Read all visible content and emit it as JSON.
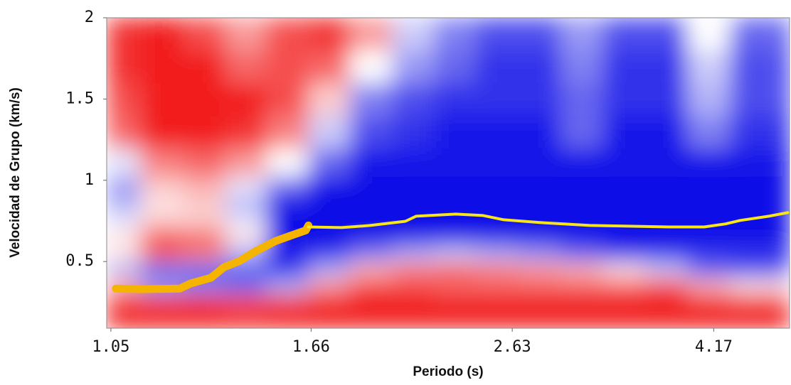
{
  "chart_data": {
    "type": "heatmap",
    "x_label": "Periodo (s)",
    "y_label": "Velocidad de Grupo (km/s)",
    "log_x": true,
    "xlim": [
      1.04,
      4.96
    ],
    "xticks": [
      1.05,
      1.66,
      2.63,
      4.17
    ],
    "ylim": [
      0.09,
      2
    ],
    "yticks": [
      0.5,
      1,
      1.5,
      2
    ],
    "zlim": [
      -1,
      1
    ],
    "colormap": [
      "#0000e6",
      "#ffffff",
      "#f00000"
    ],
    "x": [
      1.07,
      1.18,
      1.3,
      1.43,
      1.57,
      1.73,
      1.9,
      2.1,
      2.3,
      2.54,
      2.8,
      3.08,
      3.4,
      3.74,
      4.12,
      4.54
    ],
    "y": [
      0.15,
      0.25,
      0.35,
      0.45,
      0.55,
      0.65,
      0.75,
      0.85,
      0.95,
      1.1,
      1.3,
      1.5,
      1.7,
      1.9
    ],
    "z": [
      [
        0.9,
        0.9,
        0.9,
        0.9,
        0.9,
        0.9,
        0.9,
        0.9,
        0.9,
        0.9,
        0.9,
        0.9,
        0.9,
        0.9,
        0.9,
        0.9
      ],
      [
        0.8,
        0.8,
        0.8,
        0.7,
        0.8,
        0.9,
        0.9,
        0.9,
        0.9,
        0.9,
        0.9,
        0.9,
        0.9,
        0.9,
        0.9,
        0.9
      ],
      [
        0.3,
        -0.4,
        -0.5,
        -0.6,
        -0.3,
        0.4,
        0.7,
        0.7,
        0.6,
        0.6,
        0.6,
        0.6,
        0.6,
        0.7,
        0.3,
        0.1
      ],
      [
        -0.3,
        -0.6,
        -0.6,
        -0.6,
        -0.8,
        -0.3,
        0.3,
        0.5,
        0.6,
        0.5,
        0.4,
        0.3,
        0.1,
        -0.2,
        -0.6,
        -0.7
      ],
      [
        0.1,
        0.6,
        0.5,
        -0.3,
        -0.9,
        -0.8,
        -0.5,
        -0.3,
        -0.2,
        -0.3,
        -0.4,
        -0.6,
        -0.8,
        -0.8,
        -0.8,
        -0.8
      ],
      [
        0.1,
        0.7,
        0.6,
        0.1,
        -0.9,
        -0.95,
        -0.95,
        -0.95,
        -0.95,
        -0.95,
        -0.95,
        -0.95,
        -0.95,
        -0.95,
        -0.95,
        -0.95
      ],
      [
        -0.1,
        0.2,
        0.2,
        -0.1,
        -0.95,
        -0.95,
        -0.95,
        -0.95,
        -0.95,
        -0.95,
        -0.95,
        -0.95,
        -0.95,
        -0.95,
        -0.95,
        -0.95
      ],
      [
        -0.3,
        0.1,
        0.2,
        -0.3,
        -0.95,
        -0.95,
        -0.95,
        -0.95,
        -0.95,
        -0.95,
        -0.95,
        -0.95,
        -0.95,
        -0.95,
        -0.95,
        -0.95
      ],
      [
        -0.4,
        0.2,
        0.3,
        -0.1,
        -0.6,
        -0.95,
        -0.95,
        -0.95,
        -0.95,
        -0.95,
        -0.95,
        -0.95,
        -0.95,
        -0.95,
        -0.95,
        -0.95
      ],
      [
        -0.1,
        0.5,
        0.6,
        0.4,
        0,
        -0.6,
        -0.9,
        -0.9,
        -0.9,
        -0.9,
        -0.9,
        -0.9,
        -0.9,
        -0.9,
        -0.9,
        -0.9
      ],
      [
        0.6,
        0.9,
        0.9,
        0.8,
        0.5,
        -0.2,
        -0.7,
        -0.8,
        -0.9,
        -0.9,
        -0.9,
        -0.6,
        -0.9,
        -0.9,
        -0.5,
        -0.8
      ],
      [
        0.7,
        0.9,
        0.9,
        0.9,
        0.7,
        0.2,
        -0.5,
        -0.7,
        -0.8,
        -0.8,
        -0.8,
        -0.6,
        -0.8,
        -0.8,
        -0.3,
        -0.7
      ],
      [
        0.8,
        0.9,
        0.9,
        0.6,
        0.7,
        0.6,
        0,
        -0.4,
        -0.6,
        -0.8,
        -0.8,
        -0.5,
        -0.8,
        -0.8,
        -0.2,
        -0.7
      ],
      [
        0.8,
        0.9,
        0.7,
        0.4,
        0.7,
        0.8,
        0.4,
        -0.2,
        -0.5,
        -0.7,
        -0.7,
        -0.4,
        -0.7,
        -0.7,
        0,
        -0.6
      ]
    ],
    "series": [
      {
        "color": "#f5b400",
        "x": [
          1.062,
          1.125,
          1.23,
          1.26,
          1.32,
          1.36,
          1.41,
          1.46,
          1.53,
          1.58,
          1.64,
          1.65
        ],
        "values": [
          0.334,
          0.33,
          0.334,
          0.365,
          0.4,
          0.465,
          0.504,
          0.561,
          0.626,
          0.657,
          0.692,
          0.722
        ]
      },
      {
        "color": "#f7e51c",
        "x": [
          1.65,
          1.78,
          1.9,
          2.06,
          2.11,
          2.31,
          2.46,
          2.58,
          2.8,
          3.14,
          3.76,
          4.08,
          4.28,
          4.43,
          4.73,
          4.94
        ],
        "values": [
          0.713,
          0.709,
          0.722,
          0.748,
          0.779,
          0.792,
          0.783,
          0.757,
          0.74,
          0.722,
          0.713,
          0.713,
          0.731,
          0.753,
          0.779,
          0.801
        ]
      }
    ]
  }
}
